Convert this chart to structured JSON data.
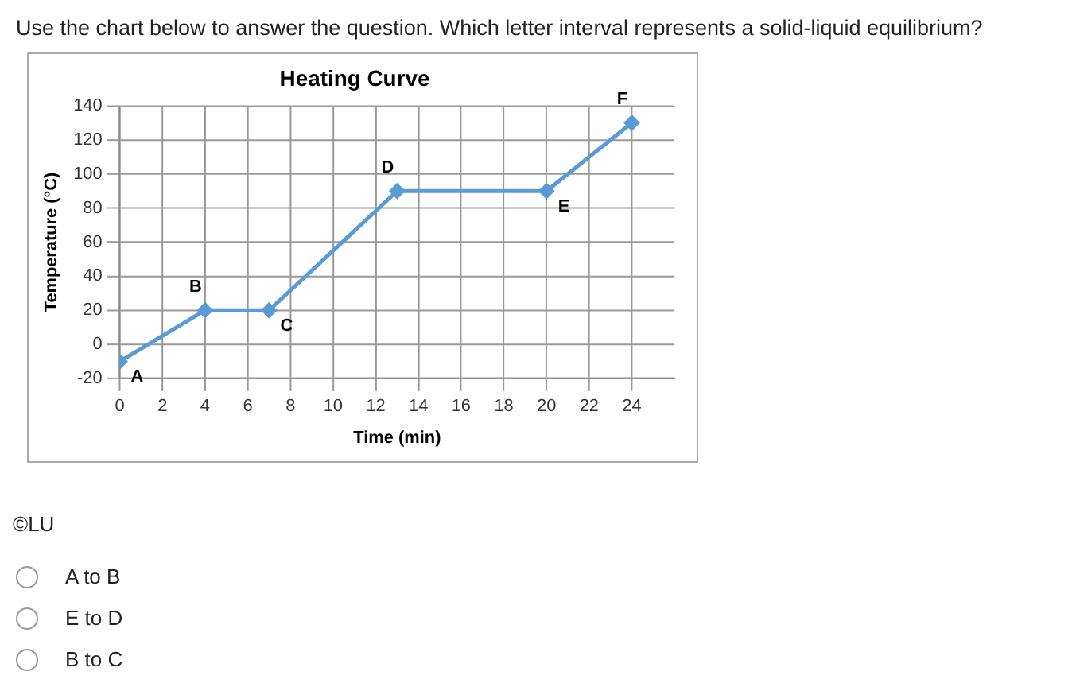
{
  "chart_data": {
    "type": "line",
    "title": "Heating Curve",
    "xlabel": "Time (min)",
    "ylabel": "Temperature (°C)",
    "series": [
      {
        "color": "#5b9bd5",
        "x": [
          0,
          4,
          7,
          13,
          20,
          24
        ],
        "values": [
          -10,
          20,
          20,
          90,
          90,
          130
        ]
      }
    ],
    "xlim": [
      0,
      26
    ],
    "xticks": [
      0,
      2,
      4,
      6,
      8,
      10,
      12,
      14,
      16,
      18,
      20,
      22,
      24
    ],
    "ylim": [
      -20,
      140
    ],
    "yticks": [
      -20,
      0,
      20,
      40,
      60,
      80,
      100,
      120,
      140
    ],
    "grid": true,
    "legend": false,
    "marker": "diamond",
    "line_style": "solid",
    "annotations": [
      "Use the chart below to answer the question. Which letter interval represents a solid-liquid equilibrium?",
      "©LU",
      "A to B",
      "E to D",
      "B to C",
      {
        "text": "A",
        "x": 0,
        "y": -10
      },
      {
        "text": "B",
        "x": 4,
        "y": 20
      },
      {
        "text": "C",
        "x": 7,
        "y": 20
      },
      {
        "text": "D",
        "x": 13,
        "y": 90
      },
      {
        "text": "E",
        "x": 20,
        "y": 90
      },
      {
        "text": "F",
        "x": 24,
        "y": 130
      }
    ]
  }
}
